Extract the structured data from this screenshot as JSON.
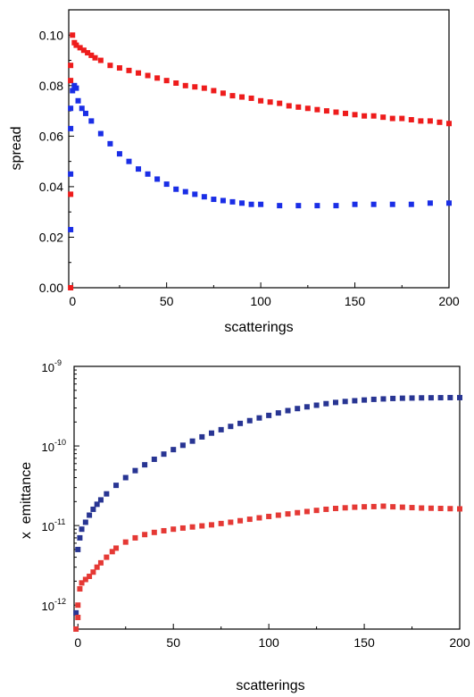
{
  "chart_data": [
    {
      "type": "scatter",
      "xlabel": "scatterings",
      "ylabel": "spread",
      "xlim": [
        -2,
        200
      ],
      "ylim": [
        0,
        0.11
      ],
      "y_scale": "linear",
      "x_ticks": [
        "0",
        "50",
        "100",
        "150",
        "200"
      ],
      "y_ticks": [
        "0.00",
        "0.02",
        "0.04",
        "0.06",
        "0.08",
        "0.10"
      ],
      "series": [
        {
          "color": "#ee1c1c",
          "points": [
            [
              -1,
              0.0
            ],
            [
              -1,
              0.037
            ],
            [
              -1,
              0.082
            ],
            [
              -1,
              0.088
            ],
            [
              0,
              0.1
            ],
            [
              1,
              0.097
            ],
            [
              2,
              0.096
            ],
            [
              4,
              0.095
            ],
            [
              6,
              0.094
            ],
            [
              8,
              0.093
            ],
            [
              10,
              0.092
            ],
            [
              12,
              0.091
            ],
            [
              15,
              0.09
            ],
            [
              20,
              0.088
            ],
            [
              25,
              0.087
            ],
            [
              30,
              0.086
            ],
            [
              35,
              0.085
            ],
            [
              40,
              0.084
            ],
            [
              45,
              0.083
            ],
            [
              50,
              0.082
            ],
            [
              55,
              0.081
            ],
            [
              60,
              0.08
            ],
            [
              65,
              0.0795
            ],
            [
              70,
              0.079
            ],
            [
              75,
              0.078
            ],
            [
              80,
              0.077
            ],
            [
              85,
              0.076
            ],
            [
              90,
              0.0755
            ],
            [
              95,
              0.075
            ],
            [
              100,
              0.074
            ],
            [
              105,
              0.0735
            ],
            [
              110,
              0.073
            ],
            [
              115,
              0.072
            ],
            [
              120,
              0.0715
            ],
            [
              125,
              0.071
            ],
            [
              130,
              0.0705
            ],
            [
              135,
              0.07
            ],
            [
              140,
              0.0695
            ],
            [
              145,
              0.069
            ],
            [
              150,
              0.0685
            ],
            [
              155,
              0.068
            ],
            [
              160,
              0.068
            ],
            [
              165,
              0.0675
            ],
            [
              170,
              0.067
            ],
            [
              175,
              0.067
            ],
            [
              180,
              0.0665
            ],
            [
              185,
              0.066
            ],
            [
              190,
              0.066
            ],
            [
              195,
              0.0655
            ],
            [
              200,
              0.065
            ]
          ]
        },
        {
          "color": "#1a2ee6",
          "points": [
            [
              -1,
              0.023
            ],
            [
              -1,
              0.045
            ],
            [
              -1,
              0.063
            ],
            [
              -1,
              0.071
            ],
            [
              0,
              0.078
            ],
            [
              1,
              0.08
            ],
            [
              2,
              0.079
            ],
            [
              3,
              0.074
            ],
            [
              5,
              0.071
            ],
            [
              7,
              0.069
            ],
            [
              10,
              0.066
            ],
            [
              15,
              0.061
            ],
            [
              20,
              0.057
            ],
            [
              25,
              0.053
            ],
            [
              30,
              0.05
            ],
            [
              35,
              0.047
            ],
            [
              40,
              0.045
            ],
            [
              45,
              0.043
            ],
            [
              50,
              0.041
            ],
            [
              55,
              0.039
            ],
            [
              60,
              0.038
            ],
            [
              65,
              0.037
            ],
            [
              70,
              0.036
            ],
            [
              75,
              0.035
            ],
            [
              80,
              0.0345
            ],
            [
              85,
              0.034
            ],
            [
              90,
              0.0335
            ],
            [
              95,
              0.033
            ],
            [
              100,
              0.033
            ],
            [
              110,
              0.0325
            ],
            [
              120,
              0.0325
            ],
            [
              130,
              0.0325
            ],
            [
              140,
              0.0325
            ],
            [
              150,
              0.033
            ],
            [
              160,
              0.033
            ],
            [
              170,
              0.033
            ],
            [
              180,
              0.033
            ],
            [
              190,
              0.0335
            ],
            [
              200,
              0.0335
            ]
          ]
        }
      ]
    },
    {
      "type": "scatter",
      "xlabel": "scatterings",
      "ylabel": "x  emittance",
      "xlim": [
        -2,
        200
      ],
      "ylim": [
        5e-13,
        1e-09
      ],
      "y_scale": "log",
      "x_ticks": [
        "0",
        "50",
        "100",
        "150",
        "200"
      ],
      "y_ticks": [
        {
          "base": "10",
          "exp": "-12",
          "value": 1e-12
        },
        {
          "base": "10",
          "exp": "-11",
          "value": 1e-11
        },
        {
          "base": "10",
          "exp": "-10",
          "value": 1e-10
        },
        {
          "base": "10",
          "exp": "-9",
          "value": 1e-09
        }
      ],
      "series": [
        {
          "color": "#283593",
          "points": [
            [
              -1,
              8e-13
            ],
            [
              0,
              5e-12
            ],
            [
              1,
              7e-12
            ],
            [
              2,
              9e-12
            ],
            [
              4,
              1.1e-11
            ],
            [
              6,
              1.35e-11
            ],
            [
              8,
              1.6e-11
            ],
            [
              10,
              1.85e-11
            ],
            [
              12,
              2.1e-11
            ],
            [
              15,
              2.5e-11
            ],
            [
              20,
              3.2e-11
            ],
            [
              25,
              4e-11
            ],
            [
              30,
              4.9e-11
            ],
            [
              35,
              5.8e-11
            ],
            [
              40,
              6.8e-11
            ],
            [
              45,
              7.9e-11
            ],
            [
              50,
              9e-11
            ],
            [
              55,
              1.02e-10
            ],
            [
              60,
              1.15e-10
            ],
            [
              65,
              1.3e-10
            ],
            [
              70,
              1.45e-10
            ],
            [
              75,
              1.6e-10
            ],
            [
              80,
              1.76e-10
            ],
            [
              85,
              1.92e-10
            ],
            [
              90,
              2.08e-10
            ],
            [
              95,
              2.25e-10
            ],
            [
              100,
              2.42e-10
            ],
            [
              105,
              2.6e-10
            ],
            [
              110,
              2.78e-10
            ],
            [
              115,
              2.95e-10
            ],
            [
              120,
              3.1e-10
            ],
            [
              125,
              3.25e-10
            ],
            [
              130,
              3.4e-10
            ],
            [
              135,
              3.52e-10
            ],
            [
              140,
              3.62e-10
            ],
            [
              145,
              3.7e-10
            ],
            [
              150,
              3.78e-10
            ],
            [
              155,
              3.85e-10
            ],
            [
              160,
              3.9e-10
            ],
            [
              165,
              3.95e-10
            ],
            [
              170,
              3.98e-10
            ],
            [
              175,
              4e-10
            ],
            [
              180,
              4.02e-10
            ],
            [
              185,
              4.03e-10
            ],
            [
              190,
              4.04e-10
            ],
            [
              195,
              4.05e-10
            ],
            [
              200,
              4.05e-10
            ]
          ]
        },
        {
          "color": "#e53935",
          "points": [
            [
              -1,
              5e-13
            ],
            [
              0,
              7e-13
            ],
            [
              0,
              1e-12
            ],
            [
              1,
              1.6e-12
            ],
            [
              2,
              1.9e-12
            ],
            [
              4,
              2.1e-12
            ],
            [
              6,
              2.3e-12
            ],
            [
              8,
              2.6e-12
            ],
            [
              10,
              3e-12
            ],
            [
              12,
              3.4e-12
            ],
            [
              15,
              4e-12
            ],
            [
              18,
              4.7e-12
            ],
            [
              20,
              5.2e-12
            ],
            [
              25,
              6.2e-12
            ],
            [
              30,
              7e-12
            ],
            [
              35,
              7.7e-12
            ],
            [
              40,
              8.2e-12
            ],
            [
              45,
              8.6e-12
            ],
            [
              50,
              9e-12
            ],
            [
              55,
              9.3e-12
            ],
            [
              60,
              9.6e-12
            ],
            [
              65,
              9.9e-12
            ],
            [
              70,
              1.02e-11
            ],
            [
              75,
              1.06e-11
            ],
            [
              80,
              1.1e-11
            ],
            [
              85,
              1.15e-11
            ],
            [
              90,
              1.2e-11
            ],
            [
              95,
              1.25e-11
            ],
            [
              100,
              1.3e-11
            ],
            [
              105,
              1.35e-11
            ],
            [
              110,
              1.4e-11
            ],
            [
              115,
              1.45e-11
            ],
            [
              120,
              1.5e-11
            ],
            [
              125,
              1.55e-11
            ],
            [
              130,
              1.6e-11
            ],
            [
              135,
              1.64e-11
            ],
            [
              140,
              1.67e-11
            ],
            [
              145,
              1.7e-11
            ],
            [
              150,
              1.72e-11
            ],
            [
              155,
              1.73e-11
            ],
            [
              160,
              1.75e-11
            ],
            [
              165,
              1.72e-11
            ],
            [
              170,
              1.7e-11
            ],
            [
              175,
              1.68e-11
            ],
            [
              180,
              1.66e-11
            ],
            [
              185,
              1.65e-11
            ],
            [
              190,
              1.64e-11
            ],
            [
              195,
              1.63e-11
            ],
            [
              200,
              1.62e-11
            ]
          ]
        }
      ]
    }
  ]
}
